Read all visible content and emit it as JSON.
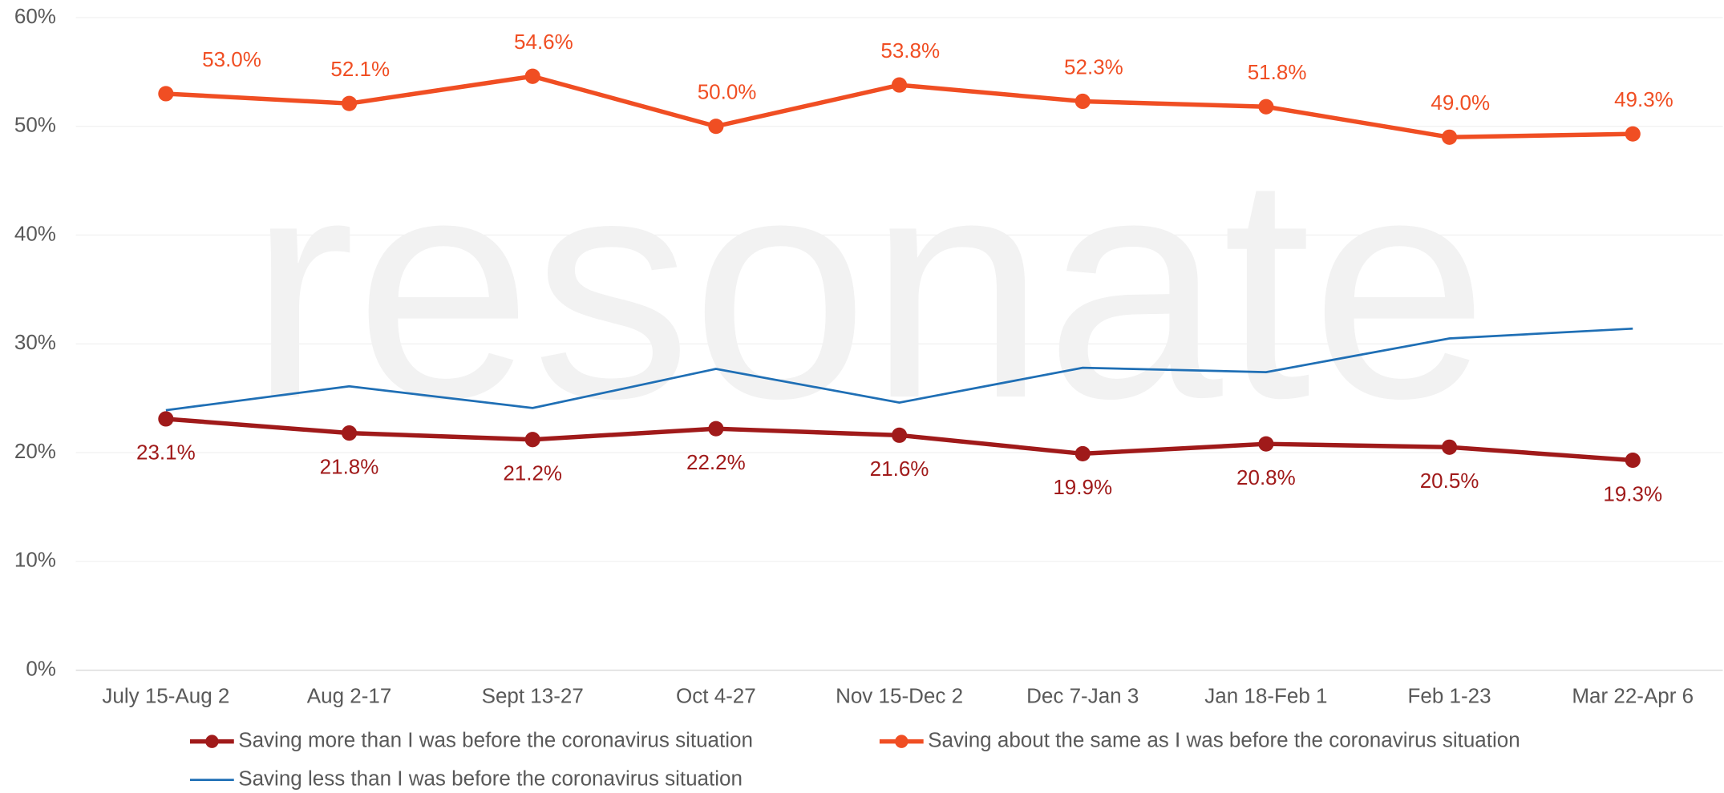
{
  "chart_data": {
    "type": "line",
    "watermark": "resonate",
    "categories": [
      "July 15-Aug 2",
      "Aug 2-17",
      "Sept 13-27",
      "Oct 4-27",
      "Nov 15-Dec 2",
      "Dec 7-Jan 3",
      "Jan 18-Feb 1",
      "Feb 1-23",
      "Mar 22-Apr 6"
    ],
    "series": [
      {
        "name": "Saving more than I was before the coronavirus situation",
        "color": "#a01a1a",
        "values": [
          23.1,
          21.8,
          21.2,
          22.2,
          21.6,
          19.9,
          20.8,
          20.5,
          19.3
        ],
        "value_labels": [
          "23.1%",
          "21.8%",
          "21.2%",
          "22.2%",
          "21.6%",
          "19.9%",
          "20.8%",
          "20.5%",
          "19.3%"
        ]
      },
      {
        "name": "Saving about the same as I was before the coronavirus situation",
        "color": "#f04e23",
        "values": [
          53.0,
          52.1,
          54.6,
          50.0,
          53.8,
          52.3,
          51.8,
          49.0,
          49.3
        ],
        "value_labels": [
          "53.0%",
          "52.1%",
          "54.6%",
          "50.0%",
          "53.8%",
          "52.3%",
          "51.8%",
          "49.0%",
          "49.3%"
        ]
      },
      {
        "name": "Saving less than I was before the coronavirus situation",
        "color": "#1f6fb5",
        "values": [
          23.9,
          26.1,
          24.1,
          27.7,
          24.6,
          27.8,
          27.4,
          30.5,
          31.4
        ]
      }
    ],
    "ylim": [
      0,
      60
    ],
    "yticks": [
      {
        "value": 0,
        "label": "0%"
      },
      {
        "value": 10,
        "label": "10%"
      },
      {
        "value": 20,
        "label": "20%"
      },
      {
        "value": 30,
        "label": "30%"
      },
      {
        "value": 40,
        "label": "40%"
      },
      {
        "value": 50,
        "label": "50%"
      },
      {
        "value": 60,
        "label": "60%"
      }
    ],
    "grid": true
  }
}
